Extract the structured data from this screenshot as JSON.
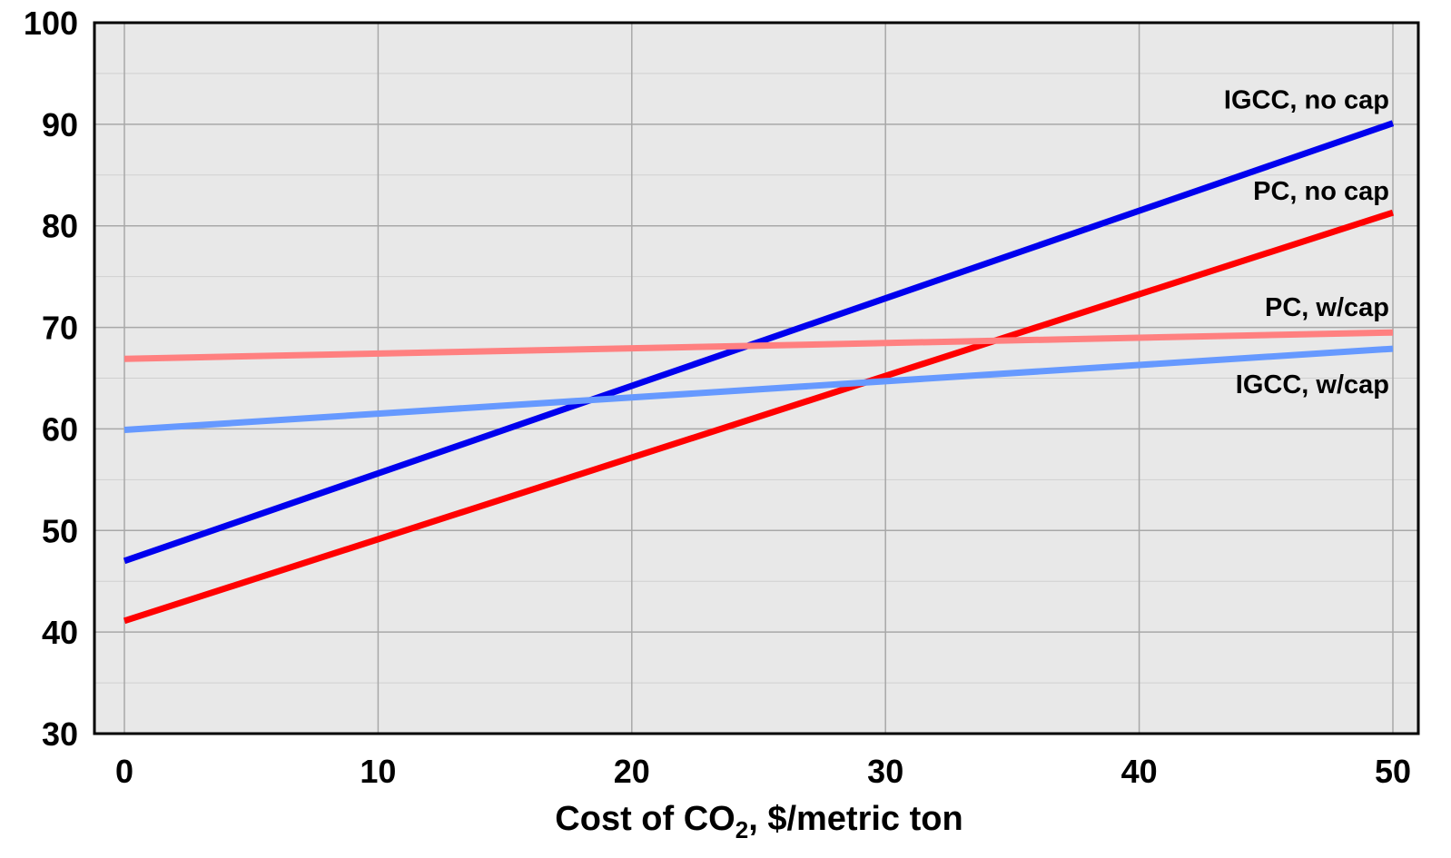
{
  "chart_data": {
    "type": "line",
    "title": "",
    "xlabel": "Cost of CO",
    "xlabel_sub": "2",
    "xlabel_rest": ", $/metric ton",
    "ylabel": "",
    "xlim": [
      0,
      50
    ],
    "ylim": [
      30,
      100
    ],
    "x_ticks": [
      "0",
      "10",
      "20",
      "30",
      "40",
      "50"
    ],
    "y_ticks": [
      "30",
      "40",
      "50",
      "60",
      "70",
      "80",
      "90",
      "100"
    ],
    "grid": true,
    "background_color": "#e8e8e8",
    "series": [
      {
        "name": "IGCC, no cap",
        "x": [
          0,
          50
        ],
        "y": [
          47.0,
          90.1
        ],
        "color": "#0000ee"
      },
      {
        "name": "PC, no cap",
        "x": [
          0,
          50
        ],
        "y": [
          41.1,
          81.3
        ],
        "color": "#ff0000"
      },
      {
        "name": "PC, w/cap",
        "x": [
          0,
          50
        ],
        "y": [
          66.9,
          69.5
        ],
        "color": "#ff8080"
      },
      {
        "name": "IGCC, w/cap",
        "x": [
          0,
          50
        ],
        "y": [
          59.9,
          67.9
        ],
        "color": "#6699ff"
      }
    ]
  }
}
